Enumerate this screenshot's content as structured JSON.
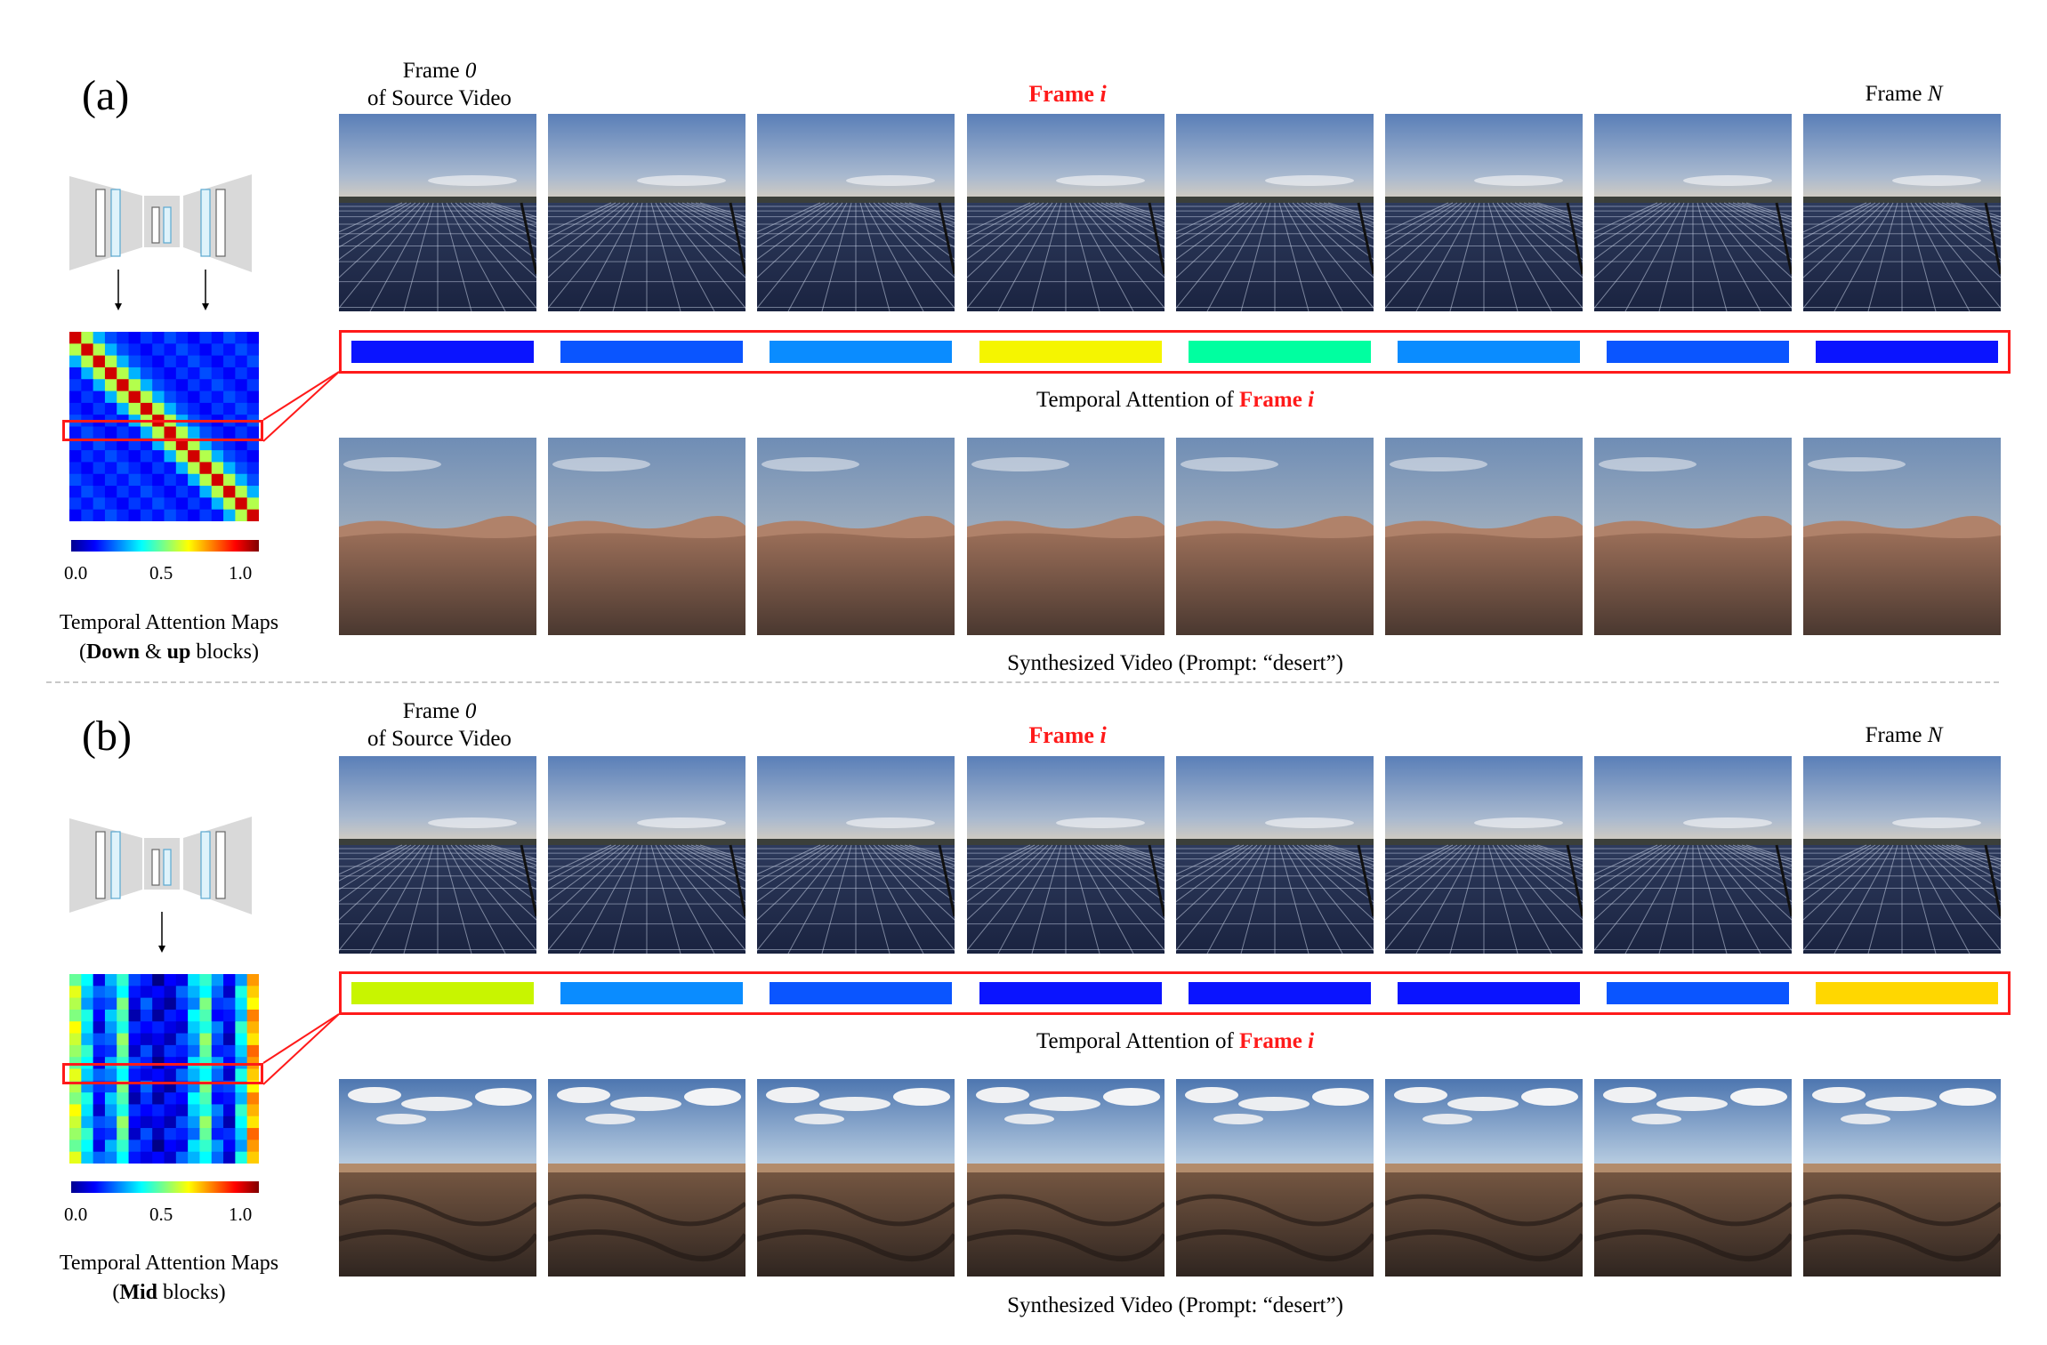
{
  "colors": {
    "accent_red": "#ff1a1a",
    "sky_top": "#5a7fb8",
    "sky_bottom": "#d9cfbf",
    "panel_dark": "#1d2844",
    "sand_light": "#b0826a",
    "sand_dark": "#4a3830"
  },
  "colorbar": {
    "ticks": [
      "0.0",
      "0.5",
      "1.0"
    ]
  },
  "panels": [
    {
      "letter": "(a)",
      "header_frame0_line1": "Frame ",
      "header_frame0_num": "0",
      "header_frame0_line2": "of Source Video",
      "header_framei_word": "Frame ",
      "header_framei_var": "i",
      "header_frameN_word": "Frame ",
      "header_frameN_var": "N",
      "attention_caption_prefix": "Temporal Attention of ",
      "attention_caption_frame": "Frame ",
      "attention_caption_var": "i",
      "synth_caption": "Synthesized Video (Prompt: “desert”)",
      "map_caption_line1": "Temporal Attention Maps",
      "map_caption_open": "(",
      "map_caption_b1": "Down",
      "map_caption_amp": " & ",
      "map_caption_b2": "up",
      "map_caption_rest": " blocks)",
      "attention_bar_colors": [
        "#0a14ff",
        "#0a55ff",
        "#0a8cff",
        "#f5f500",
        "#00ffa0",
        "#0a8cff",
        "#0a55ff",
        "#0a14ff"
      ],
      "map_type": "diagonal",
      "source_type": "solar",
      "synth_type": "dunes"
    },
    {
      "letter": "(b)",
      "header_frame0_line1": "Frame ",
      "header_frame0_num": "0",
      "header_frame0_line2": "of Source Video",
      "header_framei_word": "Frame ",
      "header_framei_var": "i",
      "header_frameN_word": "Frame ",
      "header_frameN_var": "N",
      "attention_caption_prefix": "Temporal Attention of ",
      "attention_caption_frame": "Frame ",
      "attention_caption_var": "i",
      "synth_caption": "Synthesized Video (Prompt: “desert”)",
      "map_caption_line1": "Temporal Attention Maps",
      "map_caption_open": "(",
      "map_caption_b1": "Mid",
      "map_caption_amp": "",
      "map_caption_b2": "",
      "map_caption_rest": " blocks)",
      "attention_bar_colors": [
        "#c8f500",
        "#0a8cff",
        "#0a55ff",
        "#0a14ff",
        "#0a14ff",
        "#0a14ff",
        "#0a55ff",
        "#ffd700"
      ],
      "map_type": "columns",
      "source_type": "solar",
      "synth_type": "rocky"
    }
  ]
}
